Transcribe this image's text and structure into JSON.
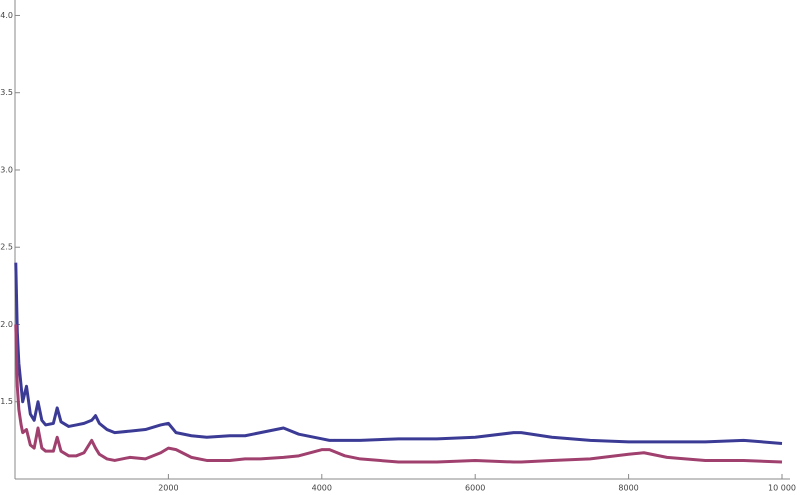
{
  "chart_data": {
    "type": "line",
    "x": [
      10,
      30,
      50,
      80,
      100,
      150,
      200,
      250,
      300,
      350,
      400,
      500,
      550,
      600,
      700,
      800,
      900,
      1000,
      1050,
      1100,
      1200,
      1300,
      1500,
      1700,
      1900,
      2000,
      2100,
      2300,
      2500,
      2800,
      3000,
      3200,
      3500,
      3700,
      4000,
      4100,
      4300,
      4500,
      5000,
      5500,
      6000,
      6500,
      6600,
      7000,
      7500,
      8000,
      8200,
      8500,
      9000,
      9500,
      10000
    ],
    "series": [
      {
        "color": "#3b3b96",
        "values": [
          2.4,
          1.95,
          1.75,
          1.6,
          1.5,
          1.6,
          1.42,
          1.38,
          1.5,
          1.38,
          1.35,
          1.36,
          1.46,
          1.37,
          1.34,
          1.35,
          1.36,
          1.38,
          1.41,
          1.36,
          1.32,
          1.3,
          1.31,
          1.32,
          1.35,
          1.36,
          1.3,
          1.28,
          1.27,
          1.28,
          1.28,
          1.3,
          1.33,
          1.29,
          1.26,
          1.25,
          1.25,
          1.25,
          1.26,
          1.26,
          1.27,
          1.3,
          1.3,
          1.27,
          1.25,
          1.24,
          1.24,
          1.24,
          1.24,
          1.25,
          1.23
        ]
      },
      {
        "color": "#a0406e",
        "values": [
          2.0,
          1.6,
          1.45,
          1.35,
          1.3,
          1.32,
          1.22,
          1.2,
          1.33,
          1.2,
          1.18,
          1.18,
          1.27,
          1.18,
          1.15,
          1.15,
          1.17,
          1.25,
          1.2,
          1.16,
          1.13,
          1.12,
          1.14,
          1.13,
          1.17,
          1.2,
          1.19,
          1.14,
          1.12,
          1.12,
          1.13,
          1.13,
          1.14,
          1.15,
          1.19,
          1.19,
          1.15,
          1.13,
          1.11,
          1.11,
          1.12,
          1.11,
          1.11,
          1.12,
          1.13,
          1.16,
          1.17,
          1.14,
          1.12,
          1.12,
          1.11
        ]
      }
    ],
    "xlim": [
      0,
      10000
    ],
    "xticks": [
      2000,
      4000,
      6000,
      8000,
      {
        "value": 10000,
        "label": "10 000"
      }
    ],
    "ylim": [
      1.0,
      4.1
    ],
    "yticks": [
      1.5,
      {
        "value": 2.0,
        "label": "2.0"
      },
      2.5,
      {
        "value": 3.0,
        "label": "3.0"
      },
      3.5,
      {
        "value": 4.0,
        "label": "4.0"
      }
    ]
  }
}
